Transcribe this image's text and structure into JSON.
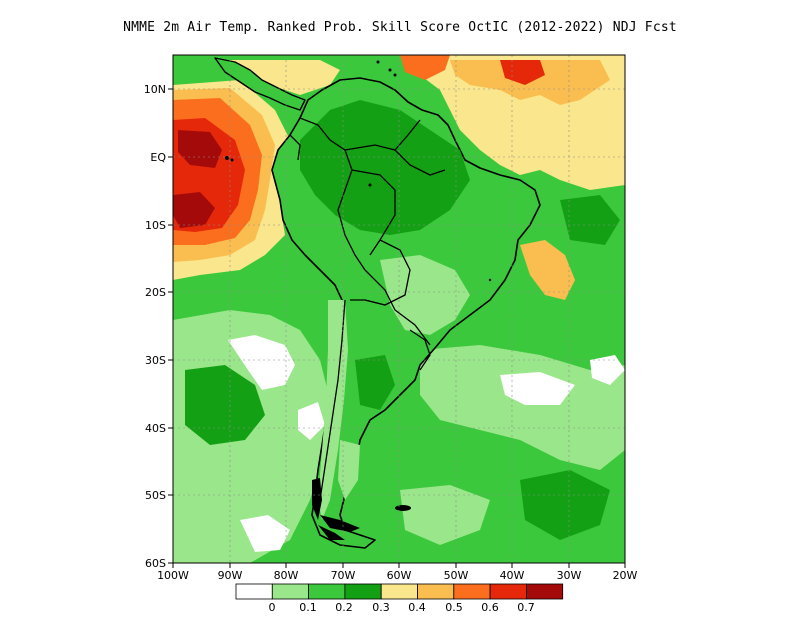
{
  "title": "NMME  2m Air Temp. Ranked Prob. Skill Score OctIC (2012-2022) NDJ Fcst",
  "map": {
    "lat_labels": [
      "10N",
      "EQ",
      "10S",
      "20S",
      "30S",
      "40S",
      "50S",
      "60S"
    ],
    "lon_labels": [
      "100W",
      "90W",
      "80W",
      "70W",
      "60W",
      "50W",
      "40W",
      "30W",
      "20W"
    ]
  },
  "colorbar": {
    "bins": [
      {
        "color": "#ffffff"
      },
      {
        "color": "#9ae68a"
      },
      {
        "color": "#3cc83c"
      },
      {
        "color": "#14a014"
      },
      {
        "color": "#fae68c"
      },
      {
        "color": "#fabe50"
      },
      {
        "color": "#fa6e1e"
      },
      {
        "color": "#e6280a"
      },
      {
        "color": "#a50a0a"
      }
    ],
    "labels": [
      "0",
      "0.1",
      "0.2",
      "0.3",
      "0.4",
      "0.5",
      "0.6",
      "0.7"
    ]
  }
}
